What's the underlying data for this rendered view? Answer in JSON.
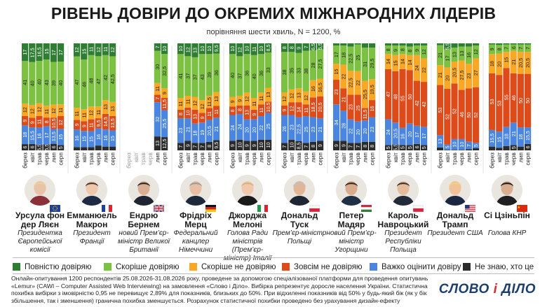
{
  "title": "РІВЕНЬ ДОВІРИ ДО ОКРЕМИХ МІЖНАРОДНИХ ЛІДЕРІВ",
  "subtitle": "порівняння шести хвиль, N = 1200, %",
  "colors": {
    "full_trust": "#2e7d32",
    "rather_trust": "#7cc142",
    "rather_distrust": "#f9a825",
    "full_distrust": "#dd4b1a",
    "hard_to_say": "#4a86e0",
    "dont_know": "#2b2b2b"
  },
  "legend": [
    {
      "key": "full_trust",
      "label": "Повністю довіряю",
      "color": "#2e7d32"
    },
    {
      "key": "rather_trust",
      "label": "Скоріше довіряю",
      "color": "#7cc142"
    },
    {
      "key": "rather_distrust",
      "label": "Скоріше не довіряю",
      "color": "#f9a825"
    },
    {
      "key": "full_distrust",
      "label": "Зовсім не довіряю",
      "color": "#dd4b1a"
    },
    {
      "key": "hard_to_say",
      "label": "Важко оцінити довіру",
      "color": "#4a86e0"
    },
    {
      "key": "dont_know",
      "label": "Не знаю, хто це",
      "color": "#2b2b2b"
    }
  ],
  "chart_data": {
    "type": "bar",
    "stacking": "100%",
    "categories": [
      "берез",
      "квіт",
      "трав",
      "черв",
      "лип",
      "серп"
    ],
    "series_order": [
      "dont_know",
      "hard_to_say",
      "full_distrust",
      "rather_distrust",
      "rather_trust",
      "full_trust"
    ],
    "leaders": [
      {
        "name": "Урсула фон дер Ляєн",
        "role": "Президентка Європейської комісії",
        "flag": "eu",
        "photo": "ursula-von-der-leyen-portrait",
        "waves": [
          {
            "full_trust": 17,
            "rather_trust": 41,
            "rather_distrust": 12,
            "full_distrust": 9,
            "hard_to_say": 18,
            "dont_know": 6
          },
          {
            "full_trust": 17.5,
            "rather_trust": 40,
            "rather_distrust": 12,
            "full_distrust": 9,
            "hard_to_say": 15.5,
            "dont_know": 6
          },
          {
            "full_trust": 16.5,
            "rather_trust": 40,
            "rather_distrust": 12,
            "full_distrust": 11,
            "hard_to_say": 16,
            "dont_know": 5.5
          },
          {
            "full_trust": 15,
            "rather_trust": 43,
            "rather_distrust": 11,
            "full_distrust": 8,
            "hard_to_say": 17,
            "dont_know": 5.5
          },
          {
            "full_trust": 17,
            "rather_trust": 39,
            "rather_distrust": 12,
            "full_distrust": 10.5,
            "hard_to_say": 13.5,
            "dont_know": 6
          },
          {
            "full_trust": 17,
            "rather_trust": 40,
            "rather_distrust": 11,
            "full_distrust": 12,
            "hard_to_say": 15,
            "dont_know": 5
          }
        ]
      },
      {
        "name": "Емманюель Макрон",
        "role": "Президент Франції",
        "flag": "fr",
        "photo": "emmanuel-macron-portrait",
        "waves": [
          {
            "full_trust": 12,
            "rather_trust": 47,
            "rather_distrust": 11,
            "full_distrust": 9,
            "hard_to_say": 16,
            "dont_know": 3
          },
          {
            "full_trust": 15,
            "rather_trust": 46,
            "rather_distrust": 11,
            "full_distrust": 9,
            "hard_to_say": 15,
            "dont_know": 3
          },
          {
            "full_trust": 11,
            "rather_trust": 48,
            "rather_distrust": 12,
            "full_distrust": 11,
            "hard_to_say": 15,
            "dont_know": 3
          },
          {
            "full_trust": 12,
            "rather_trust": 47,
            "rather_distrust": 11,
            "full_distrust": 9.5,
            "hard_to_say": 16,
            "dont_know": 4.5
          },
          {
            "full_trust": 11,
            "rather_trust": 42,
            "rather_distrust": 13,
            "full_distrust": 14.5,
            "hard_to_say": 16,
            "dont_know": 3.5
          },
          {
            "full_trust": 12,
            "rather_trust": 42.5,
            "rather_distrust": 13,
            "full_distrust": 13.5,
            "hard_to_say": 15,
            "dont_know": 3.5
          }
        ]
      },
      {
        "name": "Ендрю Бернем",
        "role": "новий Прем’єр-міністр Великої Британії",
        "flag": "uk",
        "photo": "andy-burnham-portrait",
        "waves": [
          null,
          null,
          null,
          null,
          {
            "full_trust": 7,
            "rather_trust": 30,
            "rather_distrust": 11,
            "full_distrust": 7,
            "hard_to_say": 32,
            "dont_know": 13
          },
          {
            "full_trust": 10,
            "rather_trust": 32.5,
            "rather_distrust": 9,
            "full_distrust": 11.5,
            "hard_to_say": 25.5,
            "dont_know": 12.5
          }
        ]
      },
      {
        "name": "Фрідріх Мерц",
        "role": "Федеральний канцлер Німеччини",
        "flag": "de",
        "photo": "friedrich-merz-portrait",
        "waves": [
          {
            "full_trust": 10,
            "rather_trust": 41,
            "rather_distrust": 11,
            "full_distrust": 8,
            "hard_to_say": 23,
            "dont_know": 7
          },
          {
            "full_trust": 12,
            "rather_trust": 37,
            "rather_distrust": 11,
            "full_distrust": 10,
            "hard_to_say": 21,
            "dont_know": 9
          },
          {
            "full_trust": 13,
            "rather_trust": 37,
            "rather_distrust": 12,
            "full_distrust": 13,
            "hard_to_say": 18,
            "dont_know": 7
          },
          {
            "full_trust": 10,
            "rather_trust": 43,
            "rather_distrust": 12,
            "full_distrust": 9,
            "hard_to_say": 19,
            "dont_know": 7
          },
          {
            "full_trust": 10,
            "rather_trust": 39,
            "rather_distrust": 11.5,
            "full_distrust": 11,
            "hard_to_say": 20.5,
            "dont_know": 8
          },
          {
            "full_trust": 9.5,
            "rather_trust": 36,
            "rather_distrust": 13,
            "full_distrust": 11,
            "hard_to_say": 21,
            "dont_know": 9.5
          }
        ]
      },
      {
        "name": "Джорджа Мелоні",
        "role": "Голова Ради міністрів (Прем’єр-міністр) Італії",
        "flag": "it",
        "photo": "giorgia-meloni-portrait",
        "waves": [
          {
            "full_trust": 10,
            "rather_trust": 40,
            "rather_distrust": 9,
            "full_distrust": 8,
            "hard_to_say": 24,
            "dont_know": 9
          },
          {
            "full_trust": 12,
            "rather_trust": 37,
            "rather_distrust": 9,
            "full_distrust": 8,
            "hard_to_say": 24,
            "dont_know": 10
          },
          {
            "full_trust": 10,
            "rather_trust": 36,
            "rather_distrust": 12,
            "full_distrust": 13,
            "hard_to_say": 20,
            "dont_know": 9
          },
          {
            "full_trust": 11,
            "rather_trust": 40,
            "rather_distrust": 11,
            "full_distrust": 9,
            "hard_to_say": 20,
            "dont_know": 9
          },
          {
            "full_trust": 10,
            "rather_trust": 36,
            "rather_distrust": 11,
            "full_distrust": 11,
            "hard_to_say": 22,
            "dont_know": 10
          },
          {
            "full_trust": 8.5,
            "rather_trust": 33,
            "rather_distrust": 13,
            "full_distrust": 10.5,
            "hard_to_say": 25,
            "dont_know": 10
          }
        ]
      },
      {
        "name": "Дональд Туск",
        "role": "Прем’єр-міністр Польщі",
        "flag": "pl",
        "photo": "donald-tusk-portrait",
        "waves": [
          {
            "full_trust": 8,
            "rather_trust": 38,
            "rather_distrust": 12,
            "full_distrust": 9,
            "hard_to_say": 26,
            "dont_know": 7
          },
          {
            "full_trust": 8,
            "rather_trust": 35,
            "rather_distrust": 12,
            "full_distrust": 12,
            "hard_to_say": 23,
            "dont_know": 10
          },
          {
            "full_trust": 9,
            "rather_trust": 33,
            "rather_distrust": 13,
            "full_distrust": 14,
            "hard_to_say": 22.5,
            "dont_know": 8.5
          },
          {
            "full_trust": 7,
            "rather_trust": 38,
            "rather_distrust": 12,
            "full_distrust": 11,
            "hard_to_say": 25,
            "dont_know": 7
          },
          {
            "full_trust": 6.5,
            "rather_trust": 28,
            "rather_distrust": 16,
            "full_distrust": 18.5,
            "hard_to_say": 23,
            "dont_know": 8
          },
          {
            "full_trust": 5.5,
            "rather_trust": 27.5,
            "rather_distrust": 16.5,
            "full_distrust": 20.5,
            "hard_to_say": 21,
            "dont_know": 9
          }
        ]
      },
      {
        "name": "Петер Мадяр",
        "role": "новий Прем’єр-міністр Угорщини",
        "flag": "hu",
        "photo": "peter-magyar-portrait",
        "waves": [
          {
            "full_trust": 2,
            "rather_trust": 17,
            "rather_distrust": 15,
            "full_distrust": 23,
            "hard_to_say": 34,
            "dont_know": 9
          },
          {
            "full_trust": 2,
            "rather_trust": 18,
            "rather_distrust": 22,
            "full_distrust": 21,
            "hard_to_say": 28,
            "dont_know": 9
          },
          {
            "full_trust": 3,
            "rather_trust": 22.5,
            "rather_distrust": 22.5,
            "full_distrust": 23,
            "hard_to_say": 22,
            "dont_know": 7
          },
          {
            "full_trust": 1,
            "rather_trust": 25,
            "rather_distrust": 22,
            "full_distrust": 25,
            "hard_to_say": 20,
            "dont_know": 7
          },
          {
            "full_trust": 4,
            "rather_trust": 31,
            "rather_distrust": 25.5,
            "full_distrust": 11.5,
            "hard_to_say": 20,
            "dont_know": 8
          },
          {
            "full_trust": 4,
            "rather_trust": 29.5,
            "rather_distrust": 19.5,
            "full_distrust": 16,
            "hard_to_say": 23,
            "dont_know": 8
          }
        ]
      },
      {
        "name": "Кароль Навроцький",
        "role": "Президент Республіки Польща",
        "flag": "pl",
        "photo": "karol-nawrocki-portrait",
        "waves": [
          {
            "full_trust": 2,
            "rather_trust": 8,
            "rather_distrust": 14,
            "full_distrust": 47,
            "hard_to_say": 24,
            "dont_know": 5
          },
          {
            "full_trust": 2,
            "rather_trust": 9,
            "rather_distrust": 15,
            "full_distrust": 48,
            "hard_to_say": 20.5,
            "dont_know": 5.5
          },
          {
            "full_trust": 2,
            "rather_trust": 8,
            "rather_distrust": 14,
            "full_distrust": 55,
            "hard_to_say": 16,
            "dont_know": 5
          },
          {
            "full_trust": 3,
            "rather_trust": 8,
            "rather_distrust": 14,
            "full_distrust": 50,
            "hard_to_say": 20,
            "dont_know": 5
          },
          {
            "full_trust": 2,
            "rather_trust": 9,
            "rather_distrust": 24,
            "full_distrust": 42,
            "hard_to_say": 17,
            "dont_know": 6
          },
          {
            "full_trust": 2,
            "rather_trust": 12,
            "rather_distrust": 22,
            "full_distrust": 42,
            "hard_to_say": 17,
            "dont_know": 5
          }
        ]
      },
      {
        "name": "Дональд Трамп",
        "role": "Президент США",
        "flag": "us",
        "photo": "donald-trump-portrait",
        "waves": [
          {
            "full_trust": 2,
            "rather_trust": 21,
            "rather_distrust": 21,
            "full_distrust": 53,
            "hard_to_say": 13,
            "dont_know": 3
          },
          {
            "full_trust": 5.5,
            "rather_trust": 17,
            "rather_distrust": 20,
            "full_distrust": 52,
            "hard_to_say": 5,
            "dont_know": 0.5
          },
          {
            "full_trust": 4,
            "rather_trust": 13,
            "rather_distrust": 20.5,
            "full_distrust": 52,
            "hard_to_say": 10,
            "dont_know": 0.5
          },
          {
            "full_trust": 3,
            "rather_trust": 13,
            "rather_distrust": 27.5,
            "full_distrust": 46,
            "hard_to_say": 10,
            "dont_know": 0.5
          },
          {
            "full_trust": 3,
            "rather_trust": 16,
            "rather_distrust": 23,
            "full_distrust": 50,
            "hard_to_say": 7,
            "dont_know": 1
          },
          {
            "full_trust": 2,
            "rather_trust": 12,
            "rather_distrust": 27,
            "full_distrust": 52,
            "hard_to_say": 5,
            "dont_know": 2
          }
        ]
      },
      {
        "name": "Сі Цзіньпін",
        "role": "Голова КНР",
        "flag": "cn",
        "photo": "xi-jinping-portrait",
        "waves": [
          {
            "full_trust": 1,
            "rather_trust": 9,
            "rather_distrust": 18,
            "full_distrust": 53,
            "hard_to_say": 15.5,
            "dont_know": 3.5
          },
          {
            "full_trust": 1.5,
            "rather_trust": 8,
            "rather_distrust": 20,
            "full_distrust": 53,
            "hard_to_say": 15,
            "dont_know": 2.5
          },
          {
            "full_trust": 1,
            "rather_trust": 7,
            "rather_distrust": 15,
            "full_distrust": 55,
            "hard_to_say": 18,
            "dont_know": 4
          },
          {
            "full_trust": 1,
            "rather_trust": 6,
            "rather_distrust": 21,
            "full_distrust": 46,
            "hard_to_say": 21,
            "dont_know": 5
          },
          {
            "full_trust": 1,
            "rather_trust": 7,
            "rather_distrust": 20.5,
            "full_distrust": 50,
            "hard_to_say": 18,
            "dont_know": 3.5
          },
          {
            "full_trust": 1,
            "rather_trust": 7,
            "rather_distrust": 20.5,
            "full_distrust": 50,
            "hard_to_say": 15.5,
            "dont_know": 6
          }
        ]
      }
    ]
  },
  "footer": "Онлайн-опитування 1200 респондентів 25.08.2026-31.08.2026 року, проведене за допомогою спеціалізованої платформи для проведення опитувань «Lemur» (CAWI – Computer Assisted Web Interviewing) на замовлення «Слово і Діло». Вибірка репрезентує доросле населення України. Статистична похибка вибірки з імовірністю 0,95 не перевищує 2,89% для показників, близьких до 50%. При відхиленні показників від 50% у будь-який бік (як у бік збільшення, так і зменшення) гранична похибка зменшується. Розрахунок статистичної похибки проведено без урахування дизайн-ефекту",
  "logo": {
    "part1": "СЛОВО",
    "amp": "і",
    "part2": "ДІЛО"
  }
}
